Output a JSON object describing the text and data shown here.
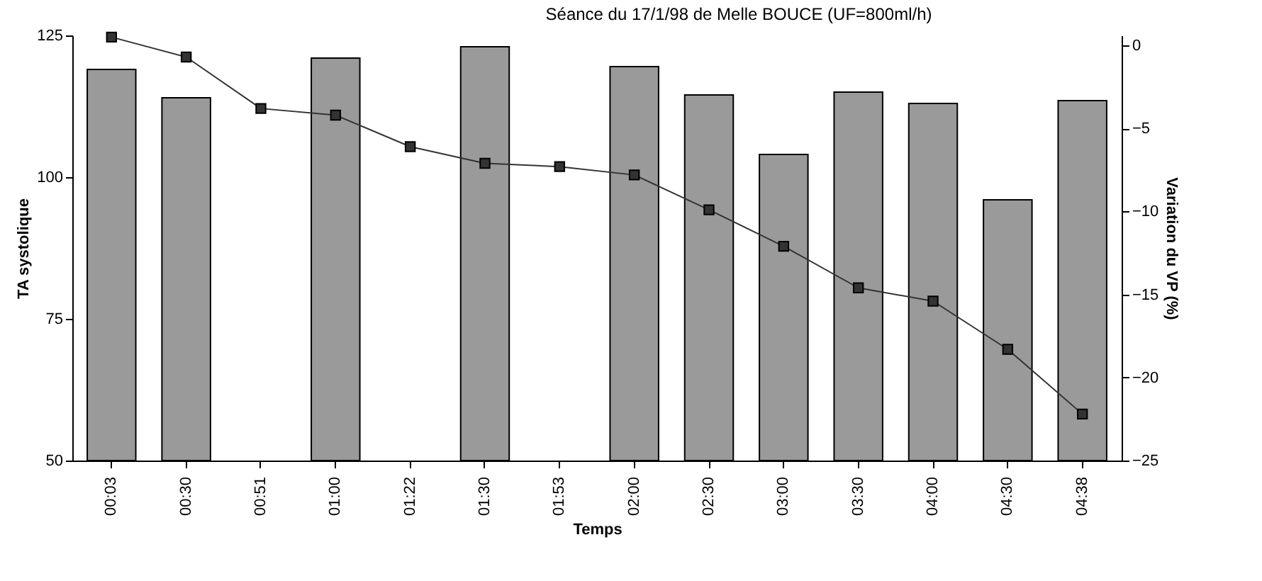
{
  "chart_data": {
    "type": "bar",
    "title": "Séance du 17/1/98 de Melle BOUCE (UF=800ml/h)",
    "xlabel": "Temps",
    "ylabel": "TA systolique",
    "y2label": "Variation du VP (%)",
    "categories": [
      "00:03",
      "00:30",
      "00:51",
      "01:00",
      "01:22",
      "01:30",
      "01:53",
      "02:00",
      "02:30",
      "03:00",
      "03:30",
      "04:00",
      "04:30",
      "04:38"
    ],
    "series": [
      {
        "color": "#9a9a9a",
        "values": [
          119,
          114,
          null,
          121,
          null,
          123,
          null,
          119.5,
          114.5,
          104,
          115,
          113,
          96,
          113.5
        ]
      },
      {
        "type": "line",
        "axis": "y2",
        "color": "#333333",
        "values": [
          0.5,
          -0.7,
          -3.8,
          -4.2,
          -6.1,
          -7.1,
          -7.3,
          -7.8,
          -9.9,
          -12.1,
          -14.6,
          -15.4,
          -18.3,
          -22.2
        ]
      }
    ],
    "ylim": [
      50,
      125
    ],
    "yticks": [
      50,
      75,
      100,
      125
    ],
    "y2lim": [
      -25,
      0.6
    ],
    "y2ticks": [
      -25,
      -20,
      -15,
      -10,
      -5,
      0
    ],
    "marker": "square",
    "grid": false
  }
}
